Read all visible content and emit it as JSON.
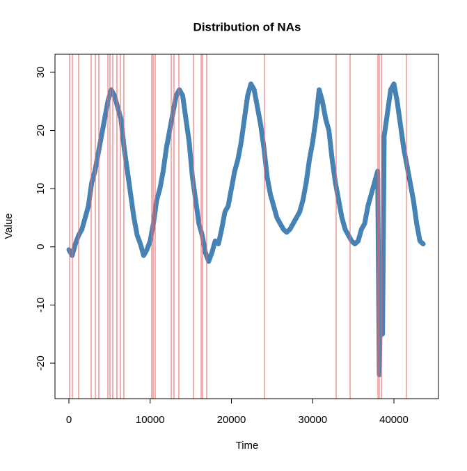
{
  "chart_data": {
    "type": "line",
    "title": "Distribution of NAs",
    "x_label": "Time",
    "y_label": "Value",
    "x": [
      0,
      400,
      800,
      1200,
      1600,
      2000,
      2400,
      2800,
      3200,
      3600,
      4000,
      4400,
      4800,
      5200,
      5600,
      6000,
      6400,
      6800,
      7200,
      7600,
      8000,
      8400,
      8800,
      9200,
      9600,
      10000,
      10400,
      10800,
      11200,
      11600,
      12000,
      12400,
      12800,
      13200,
      13600,
      14000,
      14400,
      14800,
      15200,
      15600,
      16000,
      16400,
      16800,
      17200,
      17600,
      18000,
      18400,
      18800,
      19200,
      19600,
      20000,
      20400,
      20800,
      21200,
      21600,
      22000,
      22400,
      22800,
      23200,
      23600,
      24000,
      24400,
      24800,
      25200,
      25600,
      26000,
      26400,
      26800,
      27200,
      27600,
      28000,
      28400,
      28800,
      29200,
      29600,
      30000,
      30400,
      30800,
      31200,
      31600,
      32000,
      32400,
      32800,
      33200,
      33600,
      34000,
      34400,
      34800,
      35200,
      35600,
      36000,
      36400,
      36800,
      37200,
      37600,
      38000,
      38200,
      38400,
      38600,
      38800,
      39200,
      39600,
      40000,
      40400,
      40800,
      41200,
      41600,
      42000,
      42400,
      42800,
      43200,
      43600
    ],
    "values": [
      -0.5,
      -1.5,
      0.5,
      2,
      3,
      5,
      7,
      11,
      13,
      16,
      19,
      22,
      25,
      27,
      26,
      24,
      22,
      17,
      13,
      9,
      5,
      2,
      0.5,
      -1.5,
      -0.5,
      1,
      4,
      8,
      10,
      13,
      17,
      20,
      23,
      26,
      27,
      26,
      22,
      18,
      12,
      8,
      4,
      2,
      -1,
      -2.5,
      -1,
      1,
      0.5,
      3,
      6,
      7,
      10,
      13,
      15,
      18,
      22,
      26,
      28,
      27,
      24,
      21,
      17,
      12,
      9,
      7,
      5,
      4,
      3,
      2.5,
      3,
      4,
      5,
      6,
      8,
      11,
      15,
      18,
      22,
      27,
      25,
      22,
      20,
      15,
      11,
      8,
      5,
      3,
      2,
      1,
      0.5,
      1,
      3,
      4,
      7,
      9,
      11,
      13,
      -22,
      -5,
      -15,
      19,
      23,
      27,
      28,
      25,
      21,
      17,
      14,
      11,
      8,
      4,
      1,
      0.5
    ],
    "color": "#4682b4",
    "na_positions": [
      86,
      428,
      1199,
      2741,
      3255,
      3683,
      4797,
      5054,
      5396,
      5910,
      6338,
      6767,
      10193,
      10364,
      10621,
      12591,
      12934,
      13533,
      15332,
      16274,
      16445,
      16959,
      24069,
      32891,
      34604,
      38030,
      38201,
      38458,
      41542
    ],
    "na_color": "#ee6a6a",
    "xlim": [
      -1713,
      45482
    ],
    "ylim": [
      -26.1,
      33.1
    ],
    "xticks": [
      0,
      10000,
      20000,
      30000,
      40000
    ],
    "yticks": [
      -20,
      -10,
      0,
      10,
      20,
      30
    ]
  }
}
